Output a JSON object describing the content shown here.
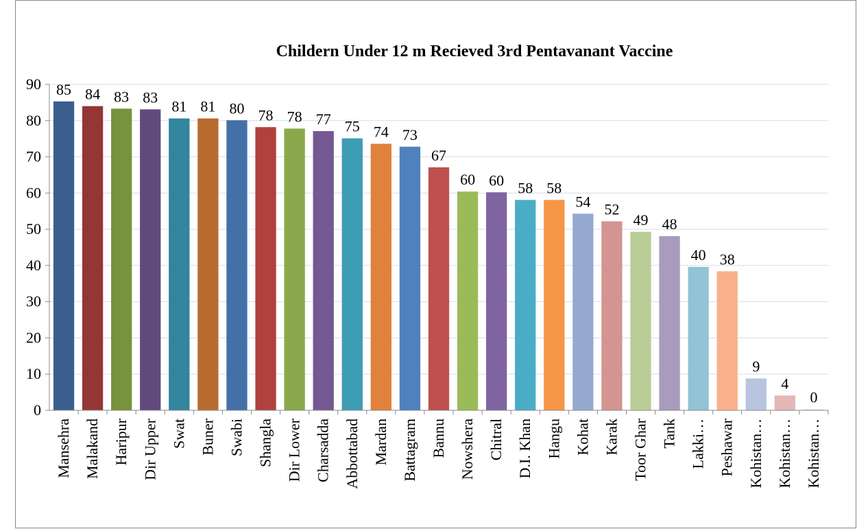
{
  "chart_data": {
    "type": "bar",
    "title": "Childern Under 12 m Recieved 3rd Pentavanant Vaccine",
    "categories": [
      "Mansehra",
      "Malakand",
      "Haripur",
      "Dir Upper",
      "Swat",
      "Buner",
      "Swabi",
      "Shangla",
      "Dir Lower",
      "Charsadda",
      "Abbottabad",
      "Mardan",
      "Battagram",
      "Bannu",
      "Nowshera",
      "Chitral",
      "D.I. Khan",
      "Hangu",
      "Kohat",
      "Karak",
      "Toor Ghar",
      "Tank",
      "Lakki…",
      "Peshawar",
      "Kohistan…",
      "Kohistan…",
      "Kohistan…"
    ],
    "values": [
      85.3,
      84.0,
      83.3,
      83.1,
      80.6,
      80.6,
      80.1,
      78.2,
      77.8,
      77.1,
      75.1,
      73.6,
      72.8,
      67.1,
      60.4,
      60.2,
      58.1,
      58.1,
      54.3,
      52.2,
      49.3,
      48.1,
      39.6,
      38.4,
      8.8,
      4.1,
      0.3
    ],
    "value_labels": [
      "85",
      "84",
      "83",
      "83",
      "81",
      "81",
      "80",
      "78",
      "78",
      "77",
      "75",
      "74",
      "73",
      "67",
      "60",
      "60",
      "58",
      "58",
      "54",
      "52",
      "49",
      "48",
      "40",
      "38",
      "9",
      "4",
      "0"
    ],
    "colors": [
      "#3a5f8f",
      "#943634",
      "#77933c",
      "#604a7b",
      "#31859c",
      "#b86b2f",
      "#4470a8",
      "#b0413e",
      "#8aa84b",
      "#735891",
      "#3d9db5",
      "#e0823b",
      "#4f81bd",
      "#c0504d",
      "#9bbb59",
      "#8064a2",
      "#4bacc6",
      "#f79646",
      "#95a9d0",
      "#d39492",
      "#b9cd96",
      "#a99bbd",
      "#92c4d6",
      "#fab08a",
      "#b9c5e0",
      "#e3b8b7",
      "#d6e3bc"
    ],
    "ylim": [
      0,
      90
    ],
    "yticks": [
      0,
      10,
      20,
      30,
      40,
      50,
      60,
      70,
      80,
      90
    ],
    "grid": true
  }
}
